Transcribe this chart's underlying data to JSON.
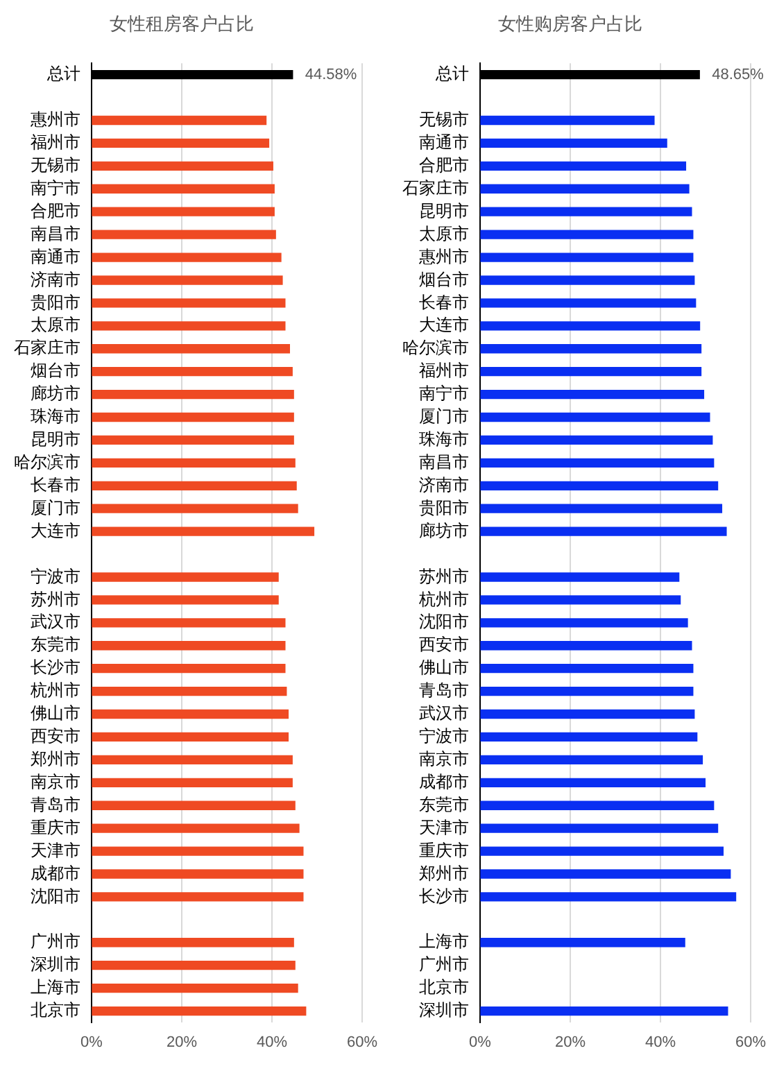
{
  "chart_data": [
    {
      "type": "bar",
      "orientation": "horizontal",
      "title": "女性租房客户占比",
      "categories": [
        "总计",
        null,
        "惠州市",
        "福州市",
        "无锡市",
        "南宁市",
        "合肥市",
        "南昌市",
        "南通市",
        "济南市",
        "贵阳市",
        "太原市",
        "石家庄市",
        "烟台市",
        "廊坊市",
        "珠海市",
        "昆明市",
        "哈尔滨市",
        "长春市",
        "厦门市",
        "大连市",
        null,
        "宁波市",
        "苏州市",
        "武汉市",
        "东莞市",
        "长沙市",
        "杭州市",
        "佛山市",
        "西安市",
        "郑州市",
        "南京市",
        "青岛市",
        "重庆市",
        "天津市",
        "成都市",
        "沈阳市",
        null,
        "广州市",
        "深圳市",
        "上海市",
        "北京市"
      ],
      "values": [
        44.58,
        null,
        38.7,
        39.3,
        40.2,
        40.5,
        40.5,
        40.8,
        42.0,
        42.3,
        42.9,
        42.9,
        43.9,
        44.5,
        44.8,
        44.8,
        44.8,
        45.1,
        45.4,
        45.7,
        49.3,
        null,
        41.4,
        41.4,
        42.9,
        42.9,
        42.9,
        43.2,
        43.6,
        43.6,
        44.5,
        44.5,
        45.1,
        46.0,
        46.9,
        46.9,
        46.9,
        null,
        44.8,
        45.1,
        45.7,
        47.5
      ],
      "colors": [
        "#000000",
        "#ef4a23",
        "#ef4a23",
        "#ef4a23",
        "#ef4a23",
        "#ef4a23",
        "#ef4a23",
        "#ef4a23",
        "#ef4a23",
        "#ef4a23",
        "#ef4a23",
        "#ef4a23",
        "#ef4a23",
        "#ef4a23",
        "#ef4a23",
        "#ef4a23",
        "#ef4a23",
        "#ef4a23",
        "#ef4a23",
        "#ef4a23",
        "#ef4a23",
        "#ef4a23",
        "#ef4a23",
        "#ef4a23",
        "#ef4a23",
        "#ef4a23",
        "#ef4a23",
        "#ef4a23",
        "#ef4a23",
        "#ef4a23",
        "#ef4a23",
        "#ef4a23",
        "#ef4a23",
        "#ef4a23",
        "#ef4a23",
        "#ef4a23",
        "#ef4a23",
        "#ef4a23",
        "#ef4a23",
        "#ef4a23",
        "#ef4a23",
        "#ef4a23"
      ],
      "value_labels": [
        "44.58%",
        null,
        null,
        null,
        null,
        null,
        null,
        null,
        null,
        null,
        null,
        null,
        null,
        null,
        null,
        null,
        null,
        null,
        null,
        null,
        null,
        null,
        null,
        null,
        null,
        null,
        null,
        null,
        null,
        null,
        null,
        null,
        null,
        null,
        null,
        null,
        null,
        null,
        null,
        null,
        null,
        null
      ],
      "xlim": [
        0,
        60
      ],
      "xticks": [
        {
          "value": 0,
          "label": "0%"
        },
        {
          "value": 20,
          "label": "20%"
        },
        {
          "value": 40,
          "label": "40%"
        },
        {
          "value": 60,
          "label": "60%"
        }
      ],
      "grid": "x"
    },
    {
      "type": "bar",
      "orientation": "horizontal",
      "title": "女性购房客户占比",
      "categories": [
        "总计",
        null,
        "无锡市",
        "南通市",
        "合肥市",
        "石家庄市",
        "昆明市",
        "太原市",
        "惠州市",
        "烟台市",
        "长春市",
        "大连市",
        "哈尔滨市",
        "福州市",
        "南宁市",
        "厦门市",
        "珠海市",
        "南昌市",
        "济南市",
        "贵阳市",
        "廊坊市",
        null,
        "苏州市",
        "杭州市",
        "沈阳市",
        "西安市",
        "佛山市",
        "青岛市",
        "武汉市",
        "宁波市",
        "南京市",
        "成都市",
        "东莞市",
        "天津市",
        "重庆市",
        "郑州市",
        "长沙市",
        null,
        "上海市",
        "广州市",
        "北京市",
        "深圳市"
      ],
      "values": [
        48.65,
        null,
        38.6,
        41.4,
        45.6,
        46.3,
        46.9,
        47.2,
        47.2,
        47.5,
        47.8,
        48.7,
        49.0,
        49.0,
        49.6,
        50.9,
        51.5,
        51.8,
        52.7,
        53.6,
        54.6,
        null,
        44.1,
        44.4,
        46.0,
        46.9,
        47.2,
        47.2,
        47.5,
        48.1,
        49.3,
        49.9,
        51.8,
        52.7,
        53.9,
        55.5,
        56.7,
        null,
        45.4,
        null,
        null,
        54.9
      ],
      "colors": [
        "#000000",
        "#0a2ff2",
        "#0a2ff2",
        "#0a2ff2",
        "#0a2ff2",
        "#0a2ff2",
        "#0a2ff2",
        "#0a2ff2",
        "#0a2ff2",
        "#0a2ff2",
        "#0a2ff2",
        "#0a2ff2",
        "#0a2ff2",
        "#0a2ff2",
        "#0a2ff2",
        "#0a2ff2",
        "#0a2ff2",
        "#0a2ff2",
        "#0a2ff2",
        "#0a2ff2",
        "#0a2ff2",
        "#0a2ff2",
        "#0a2ff2",
        "#0a2ff2",
        "#0a2ff2",
        "#0a2ff2",
        "#0a2ff2",
        "#0a2ff2",
        "#0a2ff2",
        "#0a2ff2",
        "#0a2ff2",
        "#0a2ff2",
        "#0a2ff2",
        "#0a2ff2",
        "#0a2ff2",
        "#0a2ff2",
        "#0a2ff2",
        "#0a2ff2",
        "#0a2ff2",
        "#0a2ff2",
        "#0a2ff2",
        "#0a2ff2"
      ],
      "value_labels": [
        "48.65%",
        null,
        null,
        null,
        null,
        null,
        null,
        null,
        null,
        null,
        null,
        null,
        null,
        null,
        null,
        null,
        null,
        null,
        null,
        null,
        null,
        null,
        null,
        null,
        null,
        null,
        null,
        null,
        null,
        null,
        null,
        null,
        null,
        null,
        null,
        null,
        null,
        null,
        null,
        null,
        null,
        null
      ],
      "xlim": [
        0,
        60
      ],
      "xticks": [
        {
          "value": 0,
          "label": "0%"
        },
        {
          "value": 20,
          "label": "20%"
        },
        {
          "value": 40,
          "label": "40%"
        },
        {
          "value": 60,
          "label": "60%"
        }
      ],
      "grid": "x"
    }
  ]
}
